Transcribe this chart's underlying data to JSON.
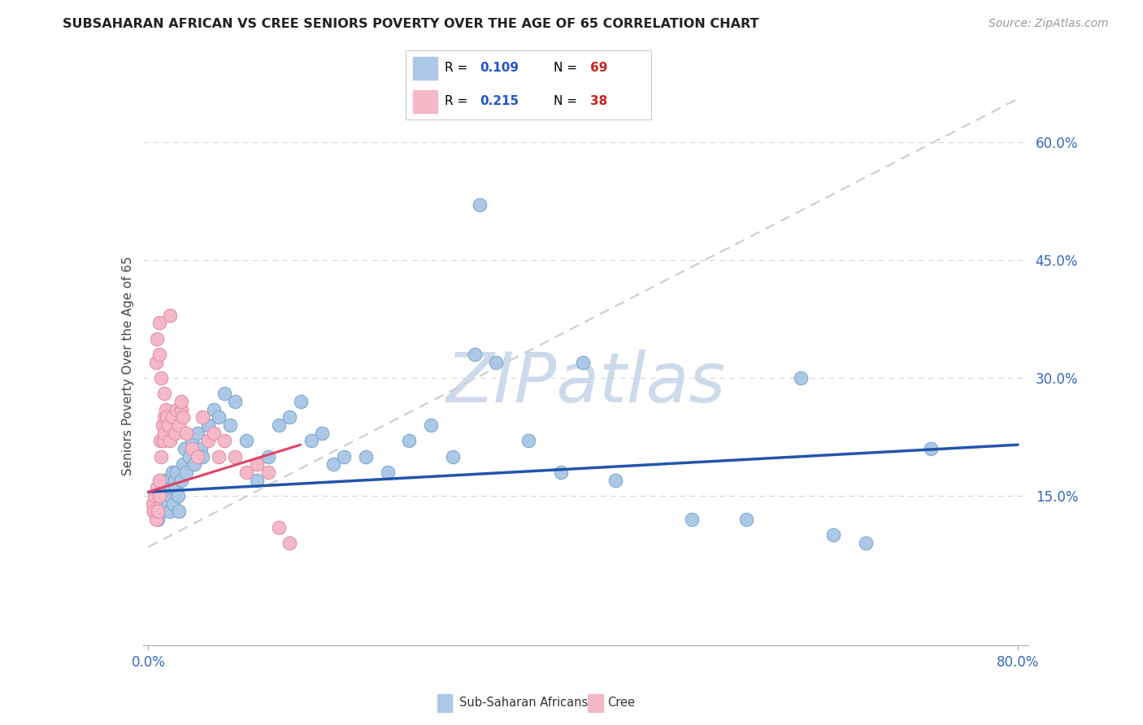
{
  "title": "SUBSAHARAN AFRICAN VS CREE SENIORS POVERTY OVER THE AGE OF 65 CORRELATION CHART",
  "source": "Source: ZipAtlas.com",
  "ylabel": "Seniors Poverty Over the Age of 65",
  "ytick_labels": [
    "15.0%",
    "30.0%",
    "45.0%",
    "60.0%"
  ],
  "ytick_values": [
    0.15,
    0.3,
    0.45,
    0.6
  ],
  "xlim_min": 0.0,
  "xlim_max": 0.8,
  "ylim_min": -0.04,
  "ylim_max": 0.67,
  "blue_color": "#adc8e6",
  "pink_color": "#f5b8c8",
  "blue_line_color": "#2255aa",
  "pink_line_color": "#dd4466",
  "gray_line_color": "#cccccc",
  "r_color": "#2255cc",
  "n_color": "#cc2222",
  "watermark_text": "ZIPatlas",
  "watermark_color": "#cddaec",
  "legend_r1": "0.109",
  "legend_n1": "69",
  "legend_r2": "0.215",
  "legend_n2": "38",
  "blue_dots_x": [
    0.005,
    0.007,
    0.008,
    0.009,
    0.01,
    0.01,
    0.012,
    0.013,
    0.014,
    0.015,
    0.015,
    0.016,
    0.017,
    0.018,
    0.019,
    0.02,
    0.02,
    0.021,
    0.022,
    0.023,
    0.024,
    0.025,
    0.026,
    0.027,
    0.028,
    0.03,
    0.032,
    0.033,
    0.035,
    0.038,
    0.04,
    0.042,
    0.045,
    0.048,
    0.05,
    0.055,
    0.06,
    0.065,
    0.07,
    0.075,
    0.08,
    0.09,
    0.1,
    0.11,
    0.12,
    0.13,
    0.14,
    0.15,
    0.16,
    0.17,
    0.18,
    0.2,
    0.22,
    0.24,
    0.26,
    0.28,
    0.3,
    0.32,
    0.35,
    0.38,
    0.4,
    0.43,
    0.5,
    0.55,
    0.6,
    0.63,
    0.66,
    0.72,
    0.305
  ],
  "blue_dots_y": [
    0.13,
    0.15,
    0.14,
    0.12,
    0.16,
    0.14,
    0.15,
    0.13,
    0.16,
    0.14,
    0.17,
    0.15,
    0.16,
    0.14,
    0.17,
    0.15,
    0.13,
    0.16,
    0.18,
    0.14,
    0.17,
    0.16,
    0.18,
    0.15,
    0.13,
    0.17,
    0.19,
    0.21,
    0.18,
    0.2,
    0.22,
    0.19,
    0.23,
    0.21,
    0.2,
    0.24,
    0.26,
    0.25,
    0.28,
    0.24,
    0.27,
    0.22,
    0.17,
    0.2,
    0.24,
    0.25,
    0.27,
    0.22,
    0.23,
    0.19,
    0.2,
    0.2,
    0.18,
    0.22,
    0.24,
    0.2,
    0.33,
    0.32,
    0.22,
    0.18,
    0.32,
    0.17,
    0.12,
    0.12,
    0.3,
    0.1,
    0.09,
    0.21,
    0.52
  ],
  "pink_dots_x": [
    0.004,
    0.005,
    0.006,
    0.007,
    0.008,
    0.009,
    0.01,
    0.01,
    0.011,
    0.012,
    0.013,
    0.014,
    0.015,
    0.015,
    0.016,
    0.017,
    0.018,
    0.02,
    0.022,
    0.024,
    0.026,
    0.028,
    0.03,
    0.032,
    0.035,
    0.04,
    0.045,
    0.05,
    0.055,
    0.06,
    0.065,
    0.07,
    0.08,
    0.09,
    0.1,
    0.11,
    0.12,
    0.13
  ],
  "pink_dots_y": [
    0.14,
    0.13,
    0.15,
    0.12,
    0.16,
    0.13,
    0.17,
    0.15,
    0.22,
    0.2,
    0.24,
    0.22,
    0.25,
    0.23,
    0.26,
    0.25,
    0.24,
    0.22,
    0.25,
    0.23,
    0.26,
    0.24,
    0.26,
    0.25,
    0.23,
    0.21,
    0.2,
    0.25,
    0.22,
    0.23,
    0.2,
    0.22,
    0.2,
    0.18,
    0.19,
    0.18,
    0.11,
    0.09
  ],
  "pink_outliers_x": [
    0.008,
    0.012,
    0.02,
    0.007,
    0.01,
    0.015,
    0.01,
    0.03
  ],
  "pink_outliers_y": [
    0.35,
    0.3,
    0.38,
    0.32,
    0.37,
    0.28,
    0.33,
    0.27
  ],
  "blue_line_x": [
    0.0,
    0.8
  ],
  "blue_line_y": [
    0.155,
    0.215
  ],
  "pink_line_x": [
    0.0,
    0.14
  ],
  "pink_line_y": [
    0.155,
    0.215
  ],
  "gray_line_x": [
    0.0,
    0.8
  ],
  "gray_line_y": [
    0.085,
    0.655
  ]
}
